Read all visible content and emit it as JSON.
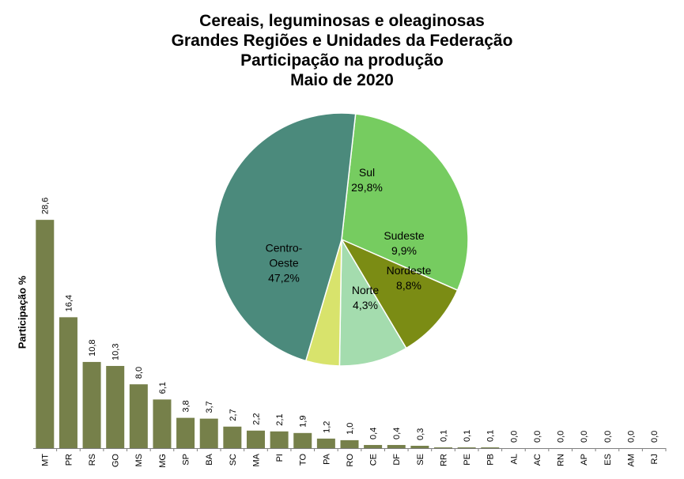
{
  "chart_data": [
    {
      "type": "bar",
      "title_lines": [
        "Cereais, leguminosas e oleaginosas",
        "Grandes Regiões e Unidades da Federação",
        "Participação na produção",
        "Maio de 2020"
      ],
      "ylabel": "Participação %",
      "categories": [
        "MT",
        "PR",
        "RS",
        "GO",
        "MS",
        "MG",
        "SP",
        "BA",
        "SC",
        "MA",
        "PI",
        "TO",
        "PA",
        "RO",
        "CE",
        "DF",
        "SE",
        "RR",
        "PE",
        "PB",
        "AL",
        "AC",
        "RN",
        "AP",
        "ES",
        "AM",
        "RJ"
      ],
      "values": [
        28.6,
        16.4,
        10.8,
        10.3,
        8.0,
        6.1,
        3.8,
        3.7,
        2.7,
        2.2,
        2.1,
        1.9,
        1.2,
        1.0,
        0.4,
        0.4,
        0.3,
        0.1,
        0.1,
        0.1,
        0.0,
        0.0,
        0.0,
        0.0,
        0.0,
        0.0,
        0.0
      ],
      "value_labels": [
        "28,6",
        "16,4",
        "10,8",
        "10,3",
        "8,0",
        "6,1",
        "3,8",
        "3,7",
        "2,7",
        "2,2",
        "2,1",
        "1,9",
        "1,2",
        "1,0",
        "0,4",
        "0,4",
        "0,3",
        "0,1",
        "0,1",
        "0,1",
        "0,0",
        "0,0",
        "0,0",
        "0,0",
        "0,0",
        "0,0",
        "0,0"
      ],
      "ylim": [
        0,
        30
      ],
      "bar_color": "#76804a",
      "grid": false
    },
    {
      "type": "pie",
      "slices": [
        {
          "name": "Sul",
          "label_lines": [
            "Sul",
            "29,8%"
          ],
          "value": 29.8,
          "color": "#76cc60"
        },
        {
          "name": "Sudeste",
          "label_lines": [
            "Sudeste",
            "9,9%"
          ],
          "value": 9.9,
          "color": "#7b8c14"
        },
        {
          "name": "Nordeste",
          "label_lines": [
            "Nordeste",
            "8,8%"
          ],
          "value": 8.8,
          "color": "#a4dcae"
        },
        {
          "name": "Norte",
          "label_lines": [
            "Norte",
            "4,3%"
          ],
          "value": 4.3,
          "color": "#d8e36c"
        },
        {
          "name": "Centro-Oeste",
          "label_lines": [
            "Centro-",
            "Oeste",
            "47,2%"
          ],
          "value": 47.2,
          "color": "#4b8a7c"
        }
      ]
    }
  ]
}
